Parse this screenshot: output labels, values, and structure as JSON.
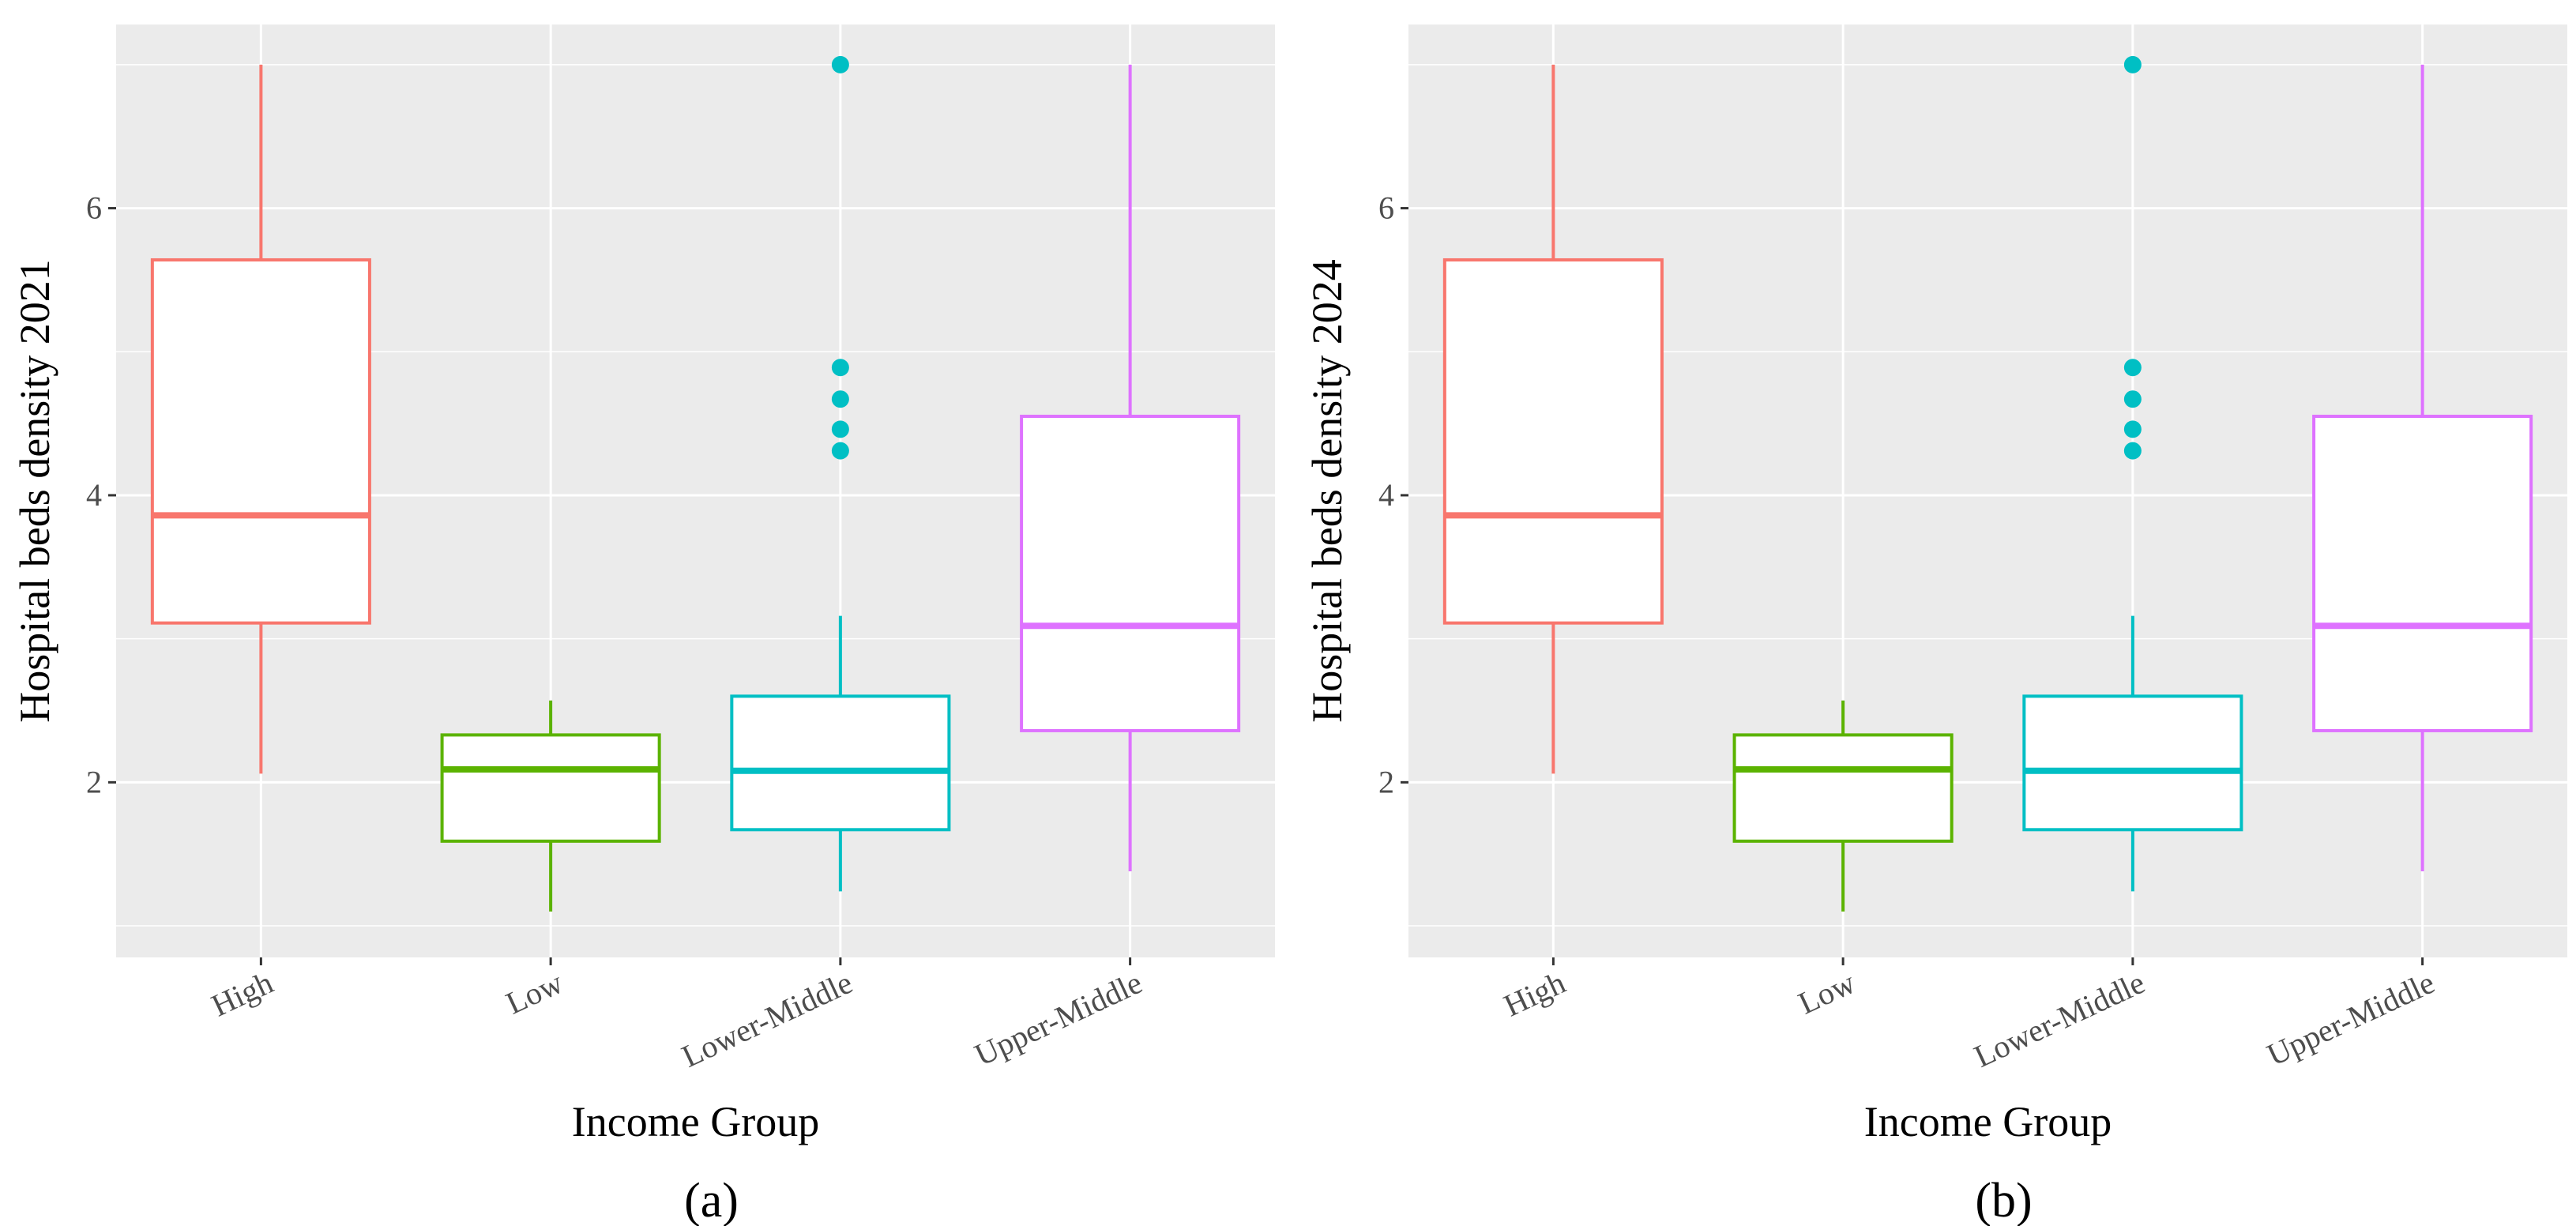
{
  "chart_data": [
    {
      "type": "boxplot",
      "panel_label": "(a)",
      "xlabel": "Income Group",
      "ylabel": "Hospital beds density 2021",
      "ylim": [
        0.78,
        7.28
      ],
      "yticks": [
        2,
        4,
        6
      ],
      "grid": true,
      "categories": [
        "High",
        "Low",
        "Lower-Middle",
        "Upper-Middle"
      ],
      "colors": [
        "#F8766D",
        "#5BB300",
        "#00BFC4",
        "#DE72FF"
      ],
      "boxes": [
        {
          "whisker_low": 2.06,
          "q1": 3.11,
          "median": 3.86,
          "q3": 5.64,
          "whisker_high": 7.0,
          "outliers": []
        },
        {
          "whisker_low": 1.1,
          "q1": 1.59,
          "median": 2.09,
          "q3": 2.33,
          "whisker_high": 2.57,
          "outliers": []
        },
        {
          "whisker_low": 1.24,
          "q1": 1.67,
          "median": 2.08,
          "q3": 2.6,
          "whisker_high": 3.16,
          "outliers": [
            7.0,
            4.89,
            4.67,
            4.46,
            4.31
          ]
        },
        {
          "whisker_low": 1.38,
          "q1": 2.36,
          "median": 3.09,
          "q3": 4.55,
          "whisker_high": 7.0,
          "outliers": []
        }
      ]
    },
    {
      "type": "boxplot",
      "panel_label": "(b)",
      "xlabel": "Income Group",
      "ylabel": "Hospital beds density 2024",
      "ylim": [
        0.78,
        7.28
      ],
      "yticks": [
        2,
        4,
        6
      ],
      "grid": true,
      "categories": [
        "High",
        "Low",
        "Lower-Middle",
        "Upper-Middle"
      ],
      "colors": [
        "#F8766D",
        "#5BB300",
        "#00BFC4",
        "#DE72FF"
      ],
      "boxes": [
        {
          "whisker_low": 2.06,
          "q1": 3.11,
          "median": 3.86,
          "q3": 5.64,
          "whisker_high": 7.0,
          "outliers": []
        },
        {
          "whisker_low": 1.1,
          "q1": 1.59,
          "median": 2.09,
          "q3": 2.33,
          "whisker_high": 2.57,
          "outliers": []
        },
        {
          "whisker_low": 1.24,
          "q1": 1.67,
          "median": 2.08,
          "q3": 2.6,
          "whisker_high": 3.16,
          "outliers": [
            7.0,
            4.89,
            4.67,
            4.46,
            4.31
          ]
        },
        {
          "whisker_low": 1.38,
          "q1": 2.36,
          "median": 3.09,
          "q3": 4.55,
          "whisker_high": 7.0,
          "outliers": []
        }
      ]
    }
  ]
}
